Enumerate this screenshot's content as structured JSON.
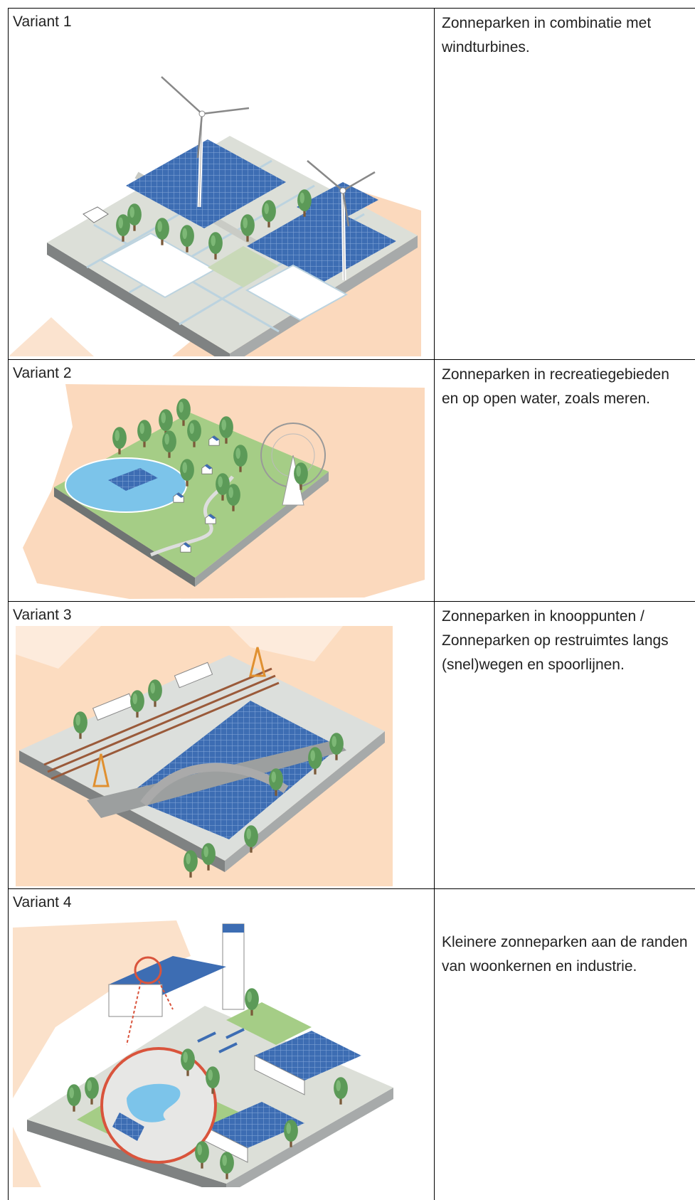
{
  "rows": [
    {
      "label": "Variant 1",
      "description": " Zonneparken in combinatie met windturbines."
    },
    {
      "label": "Variant 2",
      "description": "Zonneparken in recreatiegebieden en op open water, zoals meren."
    },
    {
      "label": "Variant 3",
      "description": "Zonneparken in knooppunten / Zonneparken op restruimtes langs (snel)wegen en spoorlijnen."
    },
    {
      "label": "Variant 4",
      "description": "Kleinere zonneparken aan de randen van woonkernen en industrie."
    }
  ]
}
